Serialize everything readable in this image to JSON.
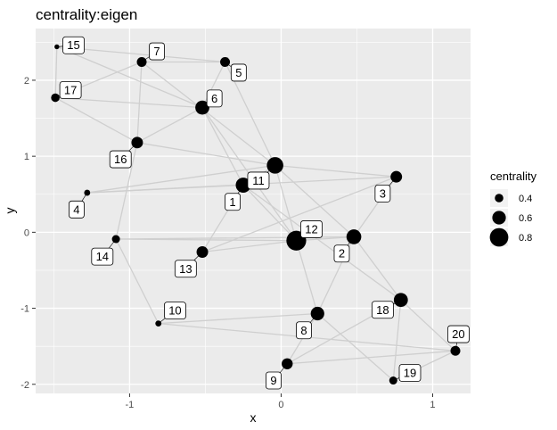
{
  "chart_data": {
    "type": "scatter",
    "title": "centrality:eigen",
    "xlabel": "x",
    "ylabel": "y",
    "xlim": [
      -1.62,
      1.25
    ],
    "ylim": [
      -2.12,
      2.68
    ],
    "x_ticks": [
      -1,
      0,
      1
    ],
    "y_ticks": [
      -2,
      -1,
      0,
      1,
      2
    ],
    "x_tick_labels": [
      "-1",
      "0",
      "1"
    ],
    "y_tick_labels": [
      "-2",
      "-1",
      "0",
      "1",
      "2"
    ],
    "grid": true,
    "legend_position": "right",
    "legend": {
      "title": "centrality",
      "entries": [
        {
          "label": "0.4",
          "value": 0.4
        },
        {
          "label": "0.6",
          "value": 0.6
        },
        {
          "label": "0.8",
          "value": 0.8
        }
      ]
    },
    "nodes": [
      {
        "id": "1",
        "x": -0.25,
        "y": 0.62,
        "centrality": 0.66
      },
      {
        "id": "2",
        "x": 0.48,
        "y": -0.06,
        "centrality": 0.65
      },
      {
        "id": "3",
        "x": 0.76,
        "y": 0.73,
        "centrality": 0.52
      },
      {
        "id": "4",
        "x": -1.28,
        "y": 0.52,
        "centrality": 0.3
      },
      {
        "id": "5",
        "x": -0.37,
        "y": 2.24,
        "centrality": 0.45
      },
      {
        "id": "6",
        "x": -0.52,
        "y": 1.64,
        "centrality": 0.62
      },
      {
        "id": "7",
        "x": -0.92,
        "y": 2.24,
        "centrality": 0.45
      },
      {
        "id": "8",
        "x": 0.24,
        "y": -1.07,
        "centrality": 0.6
      },
      {
        "id": "9",
        "x": 0.04,
        "y": -1.73,
        "centrality": 0.5
      },
      {
        "id": "10",
        "x": -0.81,
        "y": -1.2,
        "centrality": 0.3
      },
      {
        "id": "11",
        "x": -0.04,
        "y": 0.88,
        "centrality": 0.72
      },
      {
        "id": "12",
        "x": 0.1,
        "y": -0.11,
        "centrality": 0.85
      },
      {
        "id": "13",
        "x": -0.52,
        "y": -0.26,
        "centrality": 0.52
      },
      {
        "id": "14",
        "x": -1.09,
        "y": -0.09,
        "centrality": 0.38
      },
      {
        "id": "15",
        "x": -1.48,
        "y": 2.44,
        "centrality": 0.25
      },
      {
        "id": "16",
        "x": -0.95,
        "y": 1.18,
        "centrality": 0.52
      },
      {
        "id": "17",
        "x": -1.49,
        "y": 1.77,
        "centrality": 0.4
      },
      {
        "id": "18",
        "x": 0.79,
        "y": -0.89,
        "centrality": 0.62
      },
      {
        "id": "19",
        "x": 0.74,
        "y": -1.95,
        "centrality": 0.38
      },
      {
        "id": "20",
        "x": 1.15,
        "y": -1.56,
        "centrality": 0.45
      }
    ],
    "edges": [
      [
        "15",
        "5"
      ],
      [
        "15",
        "6"
      ],
      [
        "15",
        "17"
      ],
      [
        "17",
        "7"
      ],
      [
        "17",
        "6"
      ],
      [
        "17",
        "16"
      ],
      [
        "7",
        "5"
      ],
      [
        "7",
        "16"
      ],
      [
        "7",
        "11"
      ],
      [
        "5",
        "6"
      ],
      [
        "5",
        "11"
      ],
      [
        "6",
        "16"
      ],
      [
        "6",
        "1"
      ],
      [
        "6",
        "12"
      ],
      [
        "16",
        "11"
      ],
      [
        "16",
        "14"
      ],
      [
        "11",
        "3"
      ],
      [
        "11",
        "4"
      ],
      [
        "11",
        "1"
      ],
      [
        "11",
        "2"
      ],
      [
        "11",
        "12"
      ],
      [
        "4",
        "3"
      ],
      [
        "4",
        "1"
      ],
      [
        "3",
        "13"
      ],
      [
        "3",
        "2"
      ],
      [
        "1",
        "13"
      ],
      [
        "1",
        "12"
      ],
      [
        "12",
        "13"
      ],
      [
        "12",
        "14"
      ],
      [
        "12",
        "2"
      ],
      [
        "12",
        "8"
      ],
      [
        "2",
        "8"
      ],
      [
        "2",
        "14"
      ],
      [
        "2",
        "18"
      ],
      [
        "18",
        "1"
      ],
      [
        "18",
        "9"
      ],
      [
        "18",
        "19"
      ],
      [
        "18",
        "20"
      ],
      [
        "14",
        "10"
      ],
      [
        "10",
        "8"
      ],
      [
        "10",
        "20"
      ],
      [
        "8",
        "9"
      ],
      [
        "8",
        "19"
      ],
      [
        "9",
        "20"
      ],
      [
        "19",
        "20"
      ]
    ],
    "label_offsets": {
      "1": [
        -0.07,
        -0.22
      ],
      "2": [
        -0.08,
        -0.22
      ],
      "3": [
        -0.09,
        -0.22
      ],
      "4": [
        -0.07,
        -0.22
      ],
      "5": [
        0.09,
        -0.14
      ],
      "6": [
        0.08,
        0.12
      ],
      "7": [
        0.1,
        0.14
      ],
      "8": [
        -0.09,
        -0.22
      ],
      "9": [
        -0.09,
        -0.22
      ],
      "10": [
        0.11,
        0.17
      ],
      "11": [
        -0.11,
        -0.2
      ],
      "12": [
        0.1,
        0.15
      ],
      "13": [
        -0.11,
        -0.22
      ],
      "14": [
        -0.09,
        -0.23
      ],
      "15": [
        0.11,
        0.02
      ],
      "16": [
        -0.11,
        -0.22
      ],
      "17": [
        0.1,
        0.1
      ],
      "18": [
        -0.12,
        -0.13
      ],
      "19": [
        0.11,
        0.1
      ],
      "20": [
        0.02,
        0.22
      ]
    }
  }
}
